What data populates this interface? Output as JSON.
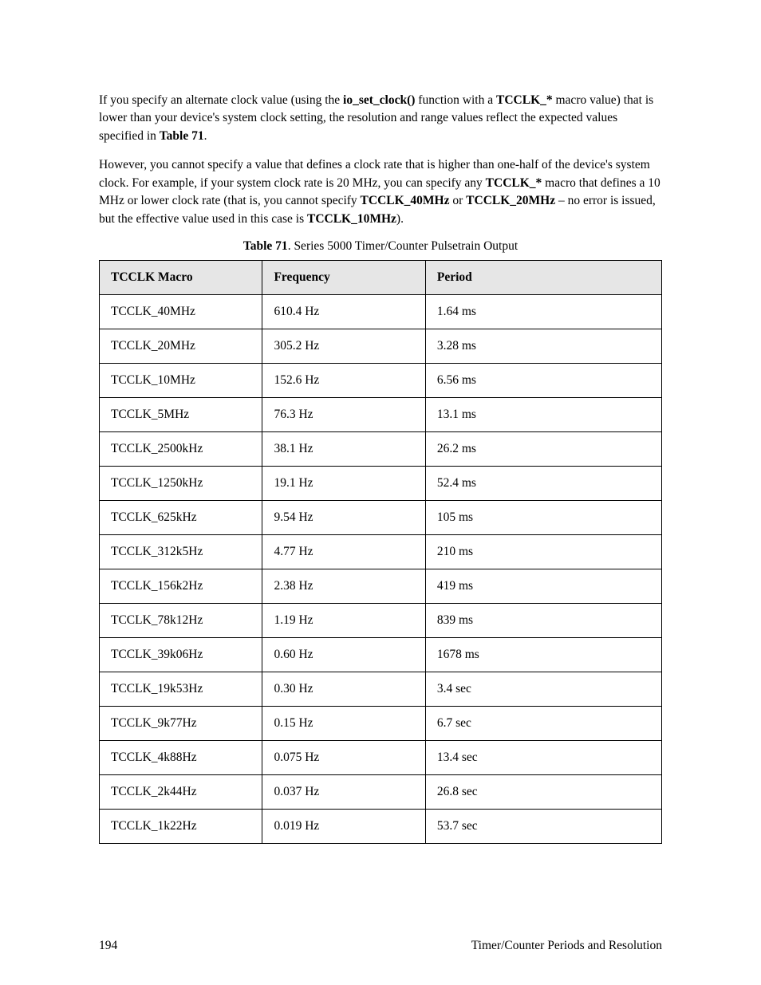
{
  "paragraphs": {
    "p1": {
      "seg1": "If you specify an alternate clock value (using the ",
      "bold1": "io_set_clock()",
      "seg2": " function with a ",
      "bold2": "TCCLK_*",
      "seg3": " macro value) that is lower than your device's system clock setting, the resolution and range values reflect the expected values specified in ",
      "bold3": "Table 71",
      "seg4": "."
    },
    "p2": {
      "seg1": "However, you cannot specify a value that defines a clock rate that is higher than one-half of the device's system clock.  For example, if your system clock rate is 20 MHz, you can specify any ",
      "bold1": "TCCLK_*",
      "seg2": " macro that defines a 10 MHz or lower clock rate (that is, you cannot specify ",
      "bold2": "TCCLK_40MHz",
      "seg3": " or ",
      "bold3": "TCCLK_20MHz",
      "seg4": " – no error is issued, but the effective value used in this case is ",
      "bold4": "TCCLK_10MHz",
      "seg5": ")."
    }
  },
  "table": {
    "caption_bold": "Table 71",
    "caption_rest": ". Series 5000 Timer/Counter Pulsetrain Output",
    "columns": [
      "TCCLK Macro",
      "Frequency",
      "Period"
    ],
    "rows": [
      [
        "TCCLK_40MHz",
        "610.4 Hz",
        "1.64 ms"
      ],
      [
        "TCCLK_20MHz",
        "305.2 Hz",
        "3.28 ms"
      ],
      [
        "TCCLK_10MHz",
        "152.6 Hz",
        "6.56 ms"
      ],
      [
        "TCCLK_5MHz",
        "76.3 Hz",
        "13.1 ms"
      ],
      [
        "TCCLK_2500kHz",
        "38.1 Hz",
        "26.2 ms"
      ],
      [
        "TCCLK_1250kHz",
        "19.1 Hz",
        "52.4 ms"
      ],
      [
        "TCCLK_625kHz",
        "9.54 Hz",
        "105 ms"
      ],
      [
        "TCCLK_312k5Hz",
        "4.77 Hz",
        "210 ms"
      ],
      [
        "TCCLK_156k2Hz",
        "2.38 Hz",
        "419 ms"
      ],
      [
        "TCCLK_78k12Hz",
        "1.19 Hz",
        "839 ms"
      ],
      [
        "TCCLK_39k06Hz",
        "0.60 Hz",
        "1678 ms"
      ],
      [
        "TCCLK_19k53Hz",
        "0.30 Hz",
        "3.4 sec"
      ],
      [
        "TCCLK_9k77Hz",
        "0.15 Hz",
        "6.7 sec"
      ],
      [
        "TCCLK_4k88Hz",
        "0.075 Hz",
        "13.4 sec"
      ],
      [
        "TCCLK_2k44Hz",
        "0.037 Hz",
        "26.8 sec"
      ],
      [
        "TCCLK_1k22Hz",
        "0.019 Hz",
        "53.7 sec"
      ]
    ]
  },
  "footer": {
    "page_number": "194",
    "section_title": "Timer/Counter Periods and Resolution"
  }
}
